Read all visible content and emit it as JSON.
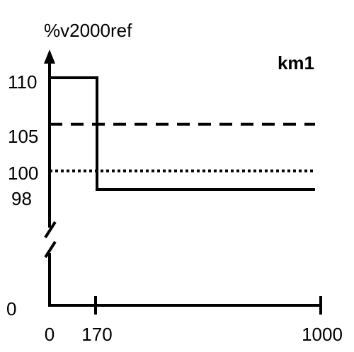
{
  "chart_data": {
    "type": "line",
    "title": "",
    "xlabel": "",
    "ylabel": "%v2000ref",
    "series_label": "km1",
    "x_ticks": [
      "0",
      "170",
      "1000"
    ],
    "y_ticks": [
      "0",
      "98",
      "100",
      "105",
      "110"
    ],
    "axis_break": "y",
    "xlim": [
      0,
      1000
    ],
    "series": [
      {
        "name": "km1",
        "style": "solid",
        "points": [
          [
            0,
            110
          ],
          [
            170,
            110
          ],
          [
            170,
            98
          ],
          [
            1000,
            98
          ]
        ]
      },
      {
        "name": "",
        "style": "dashed",
        "points": [
          [
            0,
            105
          ],
          [
            1000,
            105
          ]
        ]
      },
      {
        "name": "",
        "style": "dotted",
        "points": [
          [
            0,
            100
          ],
          [
            1000,
            100
          ]
        ]
      }
    ],
    "colors": {
      "foreground": "#000000",
      "background": "#ffffff"
    }
  }
}
